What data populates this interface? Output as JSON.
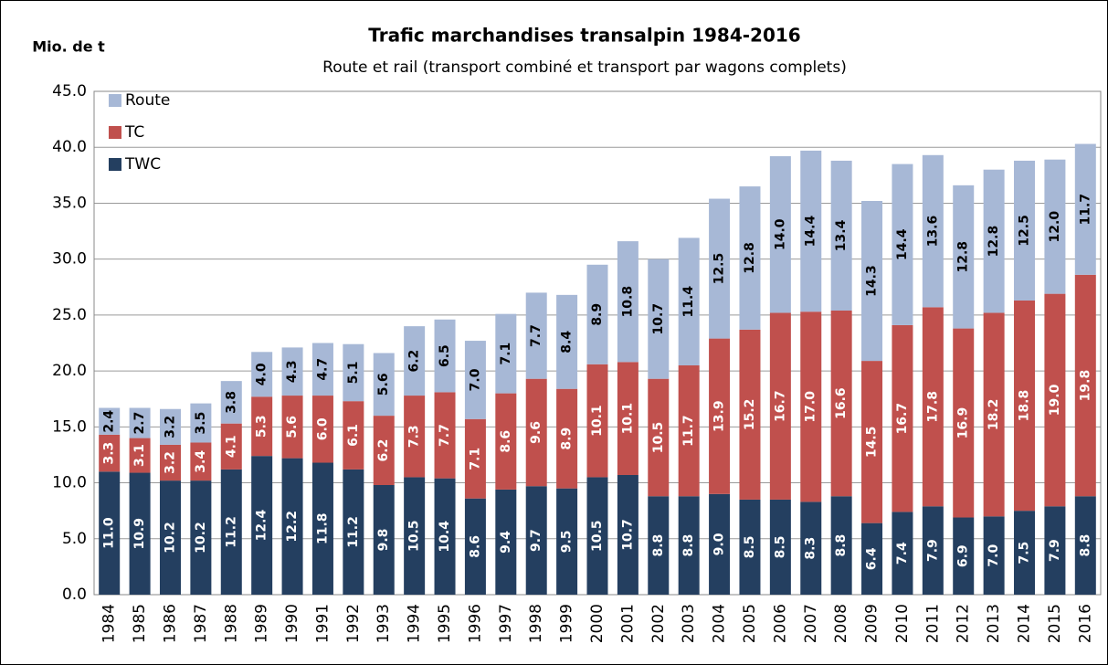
{
  "chart_data": {
    "type": "stacked-bar",
    "title": "Trafic marchandises transalpin 1984-2016",
    "subtitle": "Route et rail (transport combiné et transport par wagons complets)",
    "y_label": "Mio. de t",
    "categories": [
      "1984",
      "1985",
      "1986",
      "1987",
      "1988",
      "1989",
      "1990",
      "1991",
      "1992",
      "1993",
      "1994",
      "1995",
      "1996",
      "1997",
      "1998",
      "1999",
      "2000",
      "2001",
      "2002",
      "2003",
      "2004",
      "2005",
      "2006",
      "2007",
      "2008",
      "2009",
      "2010",
      "2011",
      "2012",
      "2013",
      "2014",
      "2015",
      "2016"
    ],
    "series": [
      {
        "name": "TWC",
        "color": "#243f60",
        "values": [
          11.0,
          10.9,
          10.2,
          10.2,
          11.2,
          12.4,
          12.2,
          11.8,
          11.2,
          9.8,
          10.5,
          10.4,
          8.6,
          9.4,
          9.7,
          9.5,
          10.5,
          10.7,
          8.8,
          8.8,
          9.0,
          8.5,
          8.5,
          8.3,
          8.8,
          6.4,
          7.4,
          7.9,
          6.9,
          7.0,
          7.5,
          7.9,
          8.8
        ],
        "value_labels": [
          "11.0",
          "10.9",
          "10.2",
          "10.2",
          "11.2",
          "12.4",
          "12.2",
          "11.8",
          "11.2",
          "9.8",
          "10.5",
          "10.4",
          "8.6",
          "9.4",
          "9.7",
          "9.5",
          "10.5",
          "10.7",
          "8.8",
          "8.8",
          "9.0",
          "8.5",
          "8.5",
          "8.3",
          "8.8",
          "6.4",
          "7.4",
          "7.9",
          "6.9",
          "7.0",
          "7.5",
          "7.9",
          "8.8"
        ]
      },
      {
        "name": "TC",
        "color": "#c0504d",
        "values": [
          3.3,
          3.1,
          3.2,
          3.4,
          4.1,
          5.3,
          5.6,
          6.0,
          6.1,
          6.2,
          7.3,
          7.7,
          7.1,
          8.6,
          9.6,
          8.9,
          10.1,
          10.1,
          10.5,
          11.7,
          13.9,
          15.2,
          16.7,
          17.0,
          16.6,
          14.5,
          16.7,
          17.8,
          16.9,
          18.2,
          18.8,
          19.0,
          19.8
        ],
        "value_labels": [
          "3.3",
          "3.1",
          "3.2",
          "3.4",
          "4.1",
          "5.3",
          "5.6",
          "6.0",
          "6.1",
          "6.2",
          "7.3",
          "7.7",
          "7.1",
          "8.6",
          "9.6",
          "8.9",
          "10.1",
          "10.1",
          "10.5",
          "11.7",
          "13.9",
          "15.2",
          "16.7",
          "17.0",
          "16.6",
          "14.5",
          "16.7",
          "17.8",
          "16.9",
          "18.2",
          "18.8",
          "19.0",
          "19.8"
        ]
      },
      {
        "name": "Route",
        "color": "#a7b8d6",
        "values": [
          2.4,
          2.7,
          3.2,
          3.5,
          3.8,
          4.0,
          4.3,
          4.7,
          5.1,
          5.6,
          6.2,
          6.5,
          7.0,
          7.1,
          7.7,
          8.4,
          8.9,
          10.8,
          10.7,
          11.4,
          12.5,
          12.8,
          14.0,
          14.4,
          13.4,
          14.3,
          14.4,
          13.6,
          12.8,
          12.8,
          12.5,
          12.0,
          11.7
        ],
        "value_labels": [
          "2.4",
          "2.7",
          "3.2",
          "3.5",
          "3.8",
          "4.0",
          "4.3",
          "4.7",
          "5.1",
          "5.6",
          "6.2",
          "6.5",
          "7.0",
          "7.1",
          "7.7",
          "8.4",
          "8.9",
          "10.8",
          "10.7",
          "11.4",
          "12.5",
          "12.8",
          "14.0",
          "14.4",
          "13.4",
          "14.3",
          "14.4",
          "13.6",
          "12.8",
          "12.8",
          "12.5",
          "12.0",
          "11.7"
        ]
      }
    ],
    "ylim": [
      0,
      45
    ],
    "yticks": [
      {
        "value": 0,
        "label": "0.0"
      },
      {
        "value": 5,
        "label": "5.0"
      },
      {
        "value": 10,
        "label": "10.0"
      },
      {
        "value": 15,
        "label": "15.0"
      },
      {
        "value": 20,
        "label": "20.0"
      },
      {
        "value": 25,
        "label": "25.0"
      },
      {
        "value": 30,
        "label": "30.0"
      },
      {
        "value": 35,
        "label": "35.0"
      },
      {
        "value": 40,
        "label": "40.0"
      },
      {
        "value": 45,
        "label": "45.0"
      }
    ],
    "grid": true,
    "legend": "top-left"
  }
}
